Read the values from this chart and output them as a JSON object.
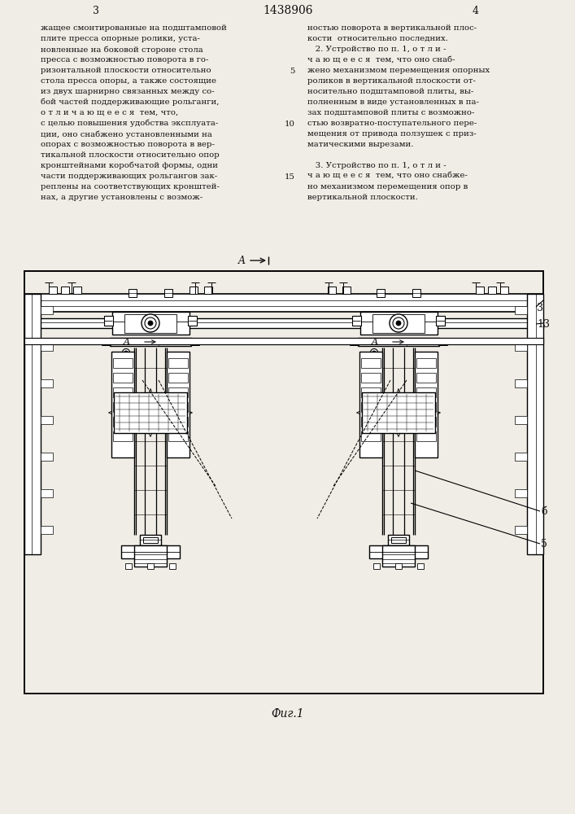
{
  "bg_color": "#f0ede6",
  "text_color": "#111111",
  "page_title": "1438906",
  "page_num_left": "3",
  "page_num_right": "4",
  "text_left": [
    "жащее смонтированные на подштамповой",
    "плите пресса опорные ролики, уста-",
    "новленные на боковой стороне стола",
    "пресса с возможностью поворота в го-",
    "ризонтальной плоскости относительно",
    "стола пресса опоры, а также состоящие",
    "из двух шарнирно связанных между со-",
    "бой частей поддерживающие рольганги,",
    "о т л и ч а ю щ е е с я  тем, что,",
    "с целью повышения удобства эксплуата-",
    "ции, оно снабжено установленными на",
    "опорах с возможностью поворота в вер-",
    "тикальной плоскости относительно опор",
    "кронштейнами коробчатой формы, одни",
    "части поддерживающих рольгангов зак-",
    "реплены на соответствующих кронштей-",
    "нах, а другие установлены с возмож-"
  ],
  "text_right": [
    "ностью поворота в вертикальной плос-",
    "кости  относительно последних.",
    "   2. Устройство по п. 1, о т л и -",
    "ч а ю щ е е с я  тем, что оно снаб-",
    "жено механизмом перемещения опорных",
    "роликов в вертикальной плоскости от-",
    "носительно подштамповой плиты, вы-",
    "полненным в виде установленных в па-",
    "зах подштамповой плиты с возможно-",
    "стью возвратно-поступательного пере-",
    "мещения от привода ползушек с приз-",
    "матическими вырезами.",
    "",
    "   3. Устройство по п. 1, о т л и -",
    "ч а ю щ е е с я  тем, что оно снабже-",
    "но механизмом перемещения опор в",
    "вертикальной плоскости."
  ],
  "line_numbers": [
    [
      4,
      "5"
    ],
    [
      9,
      "10"
    ],
    [
      14,
      "15"
    ]
  ],
  "fig_label": "Фиг.1"
}
